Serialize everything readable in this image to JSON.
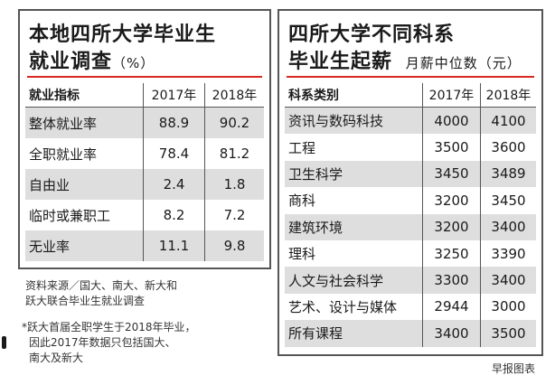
{
  "employment": {
    "title_line1": "本地四所大学毕业生",
    "title_line2": "就业调查",
    "title_unit": "（%）",
    "headers": [
      "就业指标",
      "2017年",
      "2018年"
    ],
    "rows": [
      {
        "label": "整体就业率",
        "y2017": "88.9",
        "y2018": "90.2"
      },
      {
        "label": "全职就业率",
        "y2017": "78.4",
        "y2018": "81.2"
      },
      {
        "label": "自由业",
        "y2017": "2.4",
        "y2018": "1.8"
      },
      {
        "label": "临时或兼职工",
        "y2017": "8.2",
        "y2018": "7.2"
      },
      {
        "label": "无业率",
        "y2017": "11.1",
        "y2018": "9.8"
      }
    ]
  },
  "notes": {
    "source_line1": "资料来源／国大、南大、新大和",
    "source_line2": "跃大联合毕业生就业调查",
    "footnote_line1": "*跃大首届全职学生于2018年毕业，",
    "footnote_line2": "因此2017年数据只包括国大、",
    "footnote_line3": "南大及新大"
  },
  "salary": {
    "title_line1": "四所大学不同科系",
    "title_line2": "毕业生起薪",
    "title_unit": "月薪中位数（元）",
    "headers": [
      "科系类别",
      "2017年",
      "2018年"
    ],
    "rows": [
      {
        "label": "资讯与数码科技",
        "y2017": "4000",
        "y2018": "4100"
      },
      {
        "label": "工程",
        "y2017": "3500",
        "y2018": "3600"
      },
      {
        "label": "卫生科学",
        "y2017": "3450",
        "y2018": "3489"
      },
      {
        "label": "商科",
        "y2017": "3200",
        "y2018": "3450"
      },
      {
        "label": "建筑环境",
        "y2017": "3200",
        "y2018": "3400"
      },
      {
        "label": "理科",
        "y2017": "3250",
        "y2018": "3390"
      },
      {
        "label": "人文与社会科学",
        "y2017": "3300",
        "y2018": "3400"
      },
      {
        "label": "艺术、设计与媒体",
        "y2017": "2944",
        "y2018": "3000"
      },
      {
        "label": "所有课程",
        "y2017": "3400",
        "y2018": "3500"
      }
    ]
  },
  "credit": "早报图表",
  "colors": {
    "accent_red": "#d9281f",
    "row_shade": "#dedede",
    "border": "#555555"
  }
}
